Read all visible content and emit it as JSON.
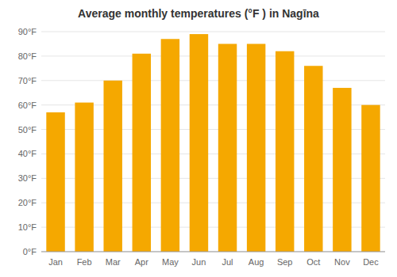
{
  "chart_data": {
    "type": "bar",
    "title": "Average monthly temperatures (°F ) in Nagīna",
    "categories": [
      "Jan",
      "Feb",
      "Mar",
      "Apr",
      "May",
      "Jun",
      "Jul",
      "Aug",
      "Sep",
      "Oct",
      "Nov",
      "Dec"
    ],
    "values": [
      57,
      61,
      70,
      81,
      87,
      89,
      85,
      85,
      82,
      76,
      67,
      60
    ],
    "color": "#F5A800",
    "ylim": [
      0,
      90
    ],
    "yticks": [
      {
        "value": 0,
        "label": "0°F"
      },
      {
        "value": 10,
        "label": "10°F"
      },
      {
        "value": 20,
        "label": "20°F"
      },
      {
        "value": 30,
        "label": "30°F"
      },
      {
        "value": 40,
        "label": "40°F"
      },
      {
        "value": 50,
        "label": "50°F"
      },
      {
        "value": 60,
        "label": "60°F"
      },
      {
        "value": 70,
        "label": "70°F"
      },
      {
        "value": 80,
        "label": "80°F"
      },
      {
        "value": 90,
        "label": "90°F"
      }
    ],
    "grid": true
  }
}
